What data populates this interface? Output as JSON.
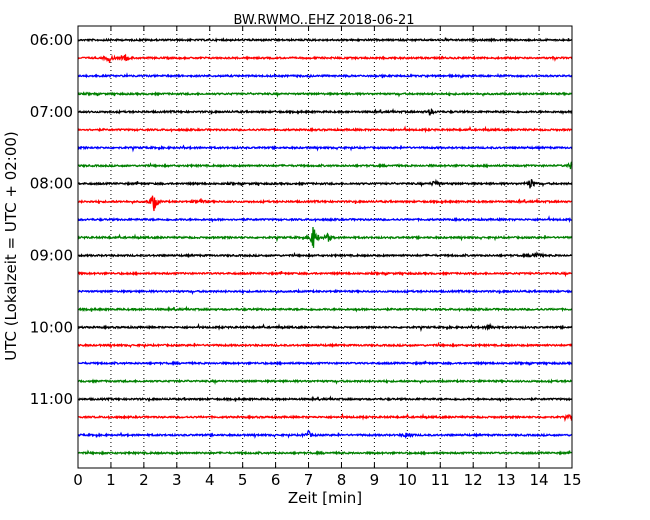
{
  "chart_data": {
    "type": "line",
    "title": "BW.RWMO..EHZ 2018-06-21",
    "xlabel": "Zeit  [min]",
    "ylabel": "UTC (Lokalzeit = UTC + 02:00)",
    "xlim": [
      0,
      15
    ],
    "x_ticks": [
      "0",
      "1",
      "2",
      "3",
      "4",
      "5",
      "6",
      "7",
      "8",
      "9",
      "10",
      "11",
      "12",
      "13",
      "14",
      "15"
    ],
    "y_tick_labels": [
      "06:00",
      "07:00",
      "08:00",
      "09:00",
      "10:00",
      "11:00"
    ],
    "grid": "vertical dotted",
    "trace_colors": [
      "#000000",
      "#ff0000",
      "#0000ff",
      "#008000"
    ],
    "trace_starts": [
      "06:00",
      "06:15",
      "06:30",
      "06:45",
      "07:00",
      "07:15",
      "07:30",
      "07:45",
      "08:00",
      "08:15",
      "08:30",
      "08:45",
      "09:00",
      "09:15",
      "09:30",
      "09:45",
      "10:00",
      "10:15",
      "10:30",
      "10:45",
      "11:00",
      "11:15",
      "11:30",
      "11:45"
    ],
    "events": [
      {
        "trace": "06:15",
        "minute": 0.95,
        "amplitude": 0.35
      },
      {
        "trace": "06:15",
        "minute": 1.45,
        "amplitude": 0.25
      },
      {
        "trace": "07:00",
        "minute": 10.7,
        "amplitude": 0.25
      },
      {
        "trace": "07:45",
        "minute": 15.0,
        "amplitude": 0.4
      },
      {
        "trace": "08:00",
        "minute": 10.85,
        "amplitude": 0.3
      },
      {
        "trace": "08:00",
        "minute": 13.75,
        "amplitude": 0.45
      },
      {
        "trace": "08:15",
        "minute": 2.3,
        "amplitude": 0.8
      },
      {
        "trace": "08:15",
        "minute": 3.7,
        "amplitude": 0.3
      },
      {
        "trace": "08:45",
        "minute": 7.15,
        "amplitude": 1.0
      },
      {
        "trace": "08:45",
        "minute": 7.6,
        "amplitude": 0.3
      },
      {
        "trace": "09:00",
        "minute": 13.9,
        "amplitude": 0.3
      },
      {
        "trace": "10:00",
        "minute": 12.5,
        "amplitude": 0.25
      },
      {
        "trace": "11:15",
        "minute": 15.0,
        "amplitude": 0.4
      },
      {
        "trace": "11:30",
        "minute": 7.0,
        "amplitude": 0.3
      },
      {
        "trace": "11:30",
        "minute": 10.0,
        "amplitude": 0.3
      }
    ]
  }
}
